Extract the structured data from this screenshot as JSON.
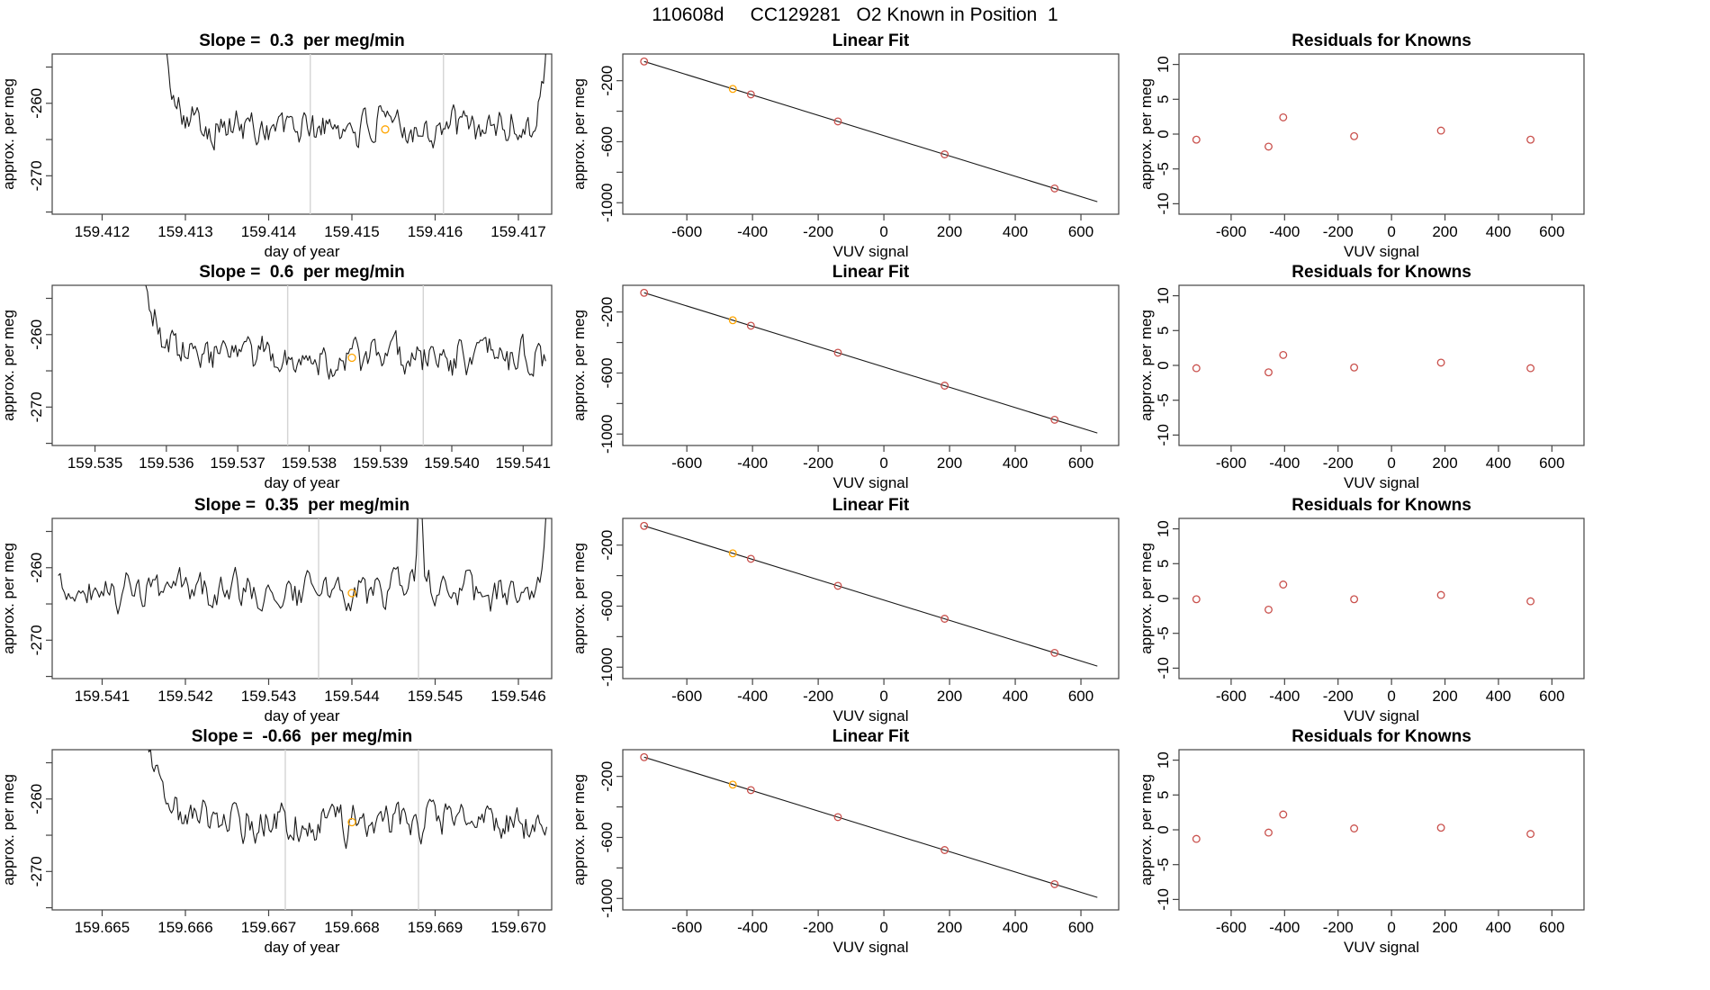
{
  "header": {
    "title": "110608d     CC129281   O2 Known in Position  1"
  },
  "colors": {
    "known_point": "#C9504C",
    "highlight_point": "#FFA500",
    "series_line": "#1a1a1a",
    "fit_line": "#1a1a1a",
    "reference_line": "#D4D4D4",
    "axis": "#444444",
    "background": "#FFFFFF"
  },
  "chart_data": {
    "type": "multi-panel",
    "grid": "4 rows x 3 columns",
    "rows": [
      {
        "timeseries": {
          "type": "line",
          "title": "Slope =  0.3  per meg/min",
          "xlabel": "day of year",
          "ylabel": "approx. per meg",
          "xlim": [
            159.4114,
            159.4174
          ],
          "xticks": [
            "159.412",
            "159.413",
            "159.414",
            "159.415",
            "159.416",
            "159.417"
          ],
          "ylim": [
            -275.3,
            -253.2
          ],
          "yticks": [
            "-260",
            "-270"
          ],
          "yticks_minor": [
            -255,
            -265,
            -275
          ],
          "mean_level": -263.3,
          "noise_amplitude": 2.0,
          "vlines": [
            159.4145,
            159.4161
          ],
          "highlight_point": {
            "x": 159.4154,
            "y": -263.6
          },
          "shape": {
            "seed": 101,
            "start_frac": 0.185,
            "end_frac": 0.997,
            "entry_drop": true,
            "end_rise": true,
            "spike_frac": null
          }
        },
        "linear_fit": {
          "type": "scatter",
          "title": "Linear Fit",
          "xlabel": "VUV signal",
          "ylabel": "approx. per meg",
          "xlim": [
            -795,
            715
          ],
          "ylim": [
            -1075,
            -25
          ],
          "xticks": [
            "-600",
            "-400",
            "-200",
            "0",
            "200",
            "400",
            "600"
          ],
          "yticks": [
            "-200",
            "-600",
            "-1000"
          ],
          "yticks_minor": [
            -400,
            -800
          ],
          "points_x": [
            -730,
            -460,
            -405,
            -140,
            185,
            520
          ],
          "points_y": [
            -74,
            -254,
            -290,
            -467,
            -683,
            -906
          ],
          "highlight_index": 1,
          "fit_line": {
            "x1": -730,
            "y1": -74,
            "x2": 650,
            "y2": -993
          }
        },
        "residuals": {
          "type": "scatter",
          "title": "Residuals for Knowns",
          "xlabel": "VUV signal",
          "ylabel": "approx. per meg",
          "xlim": [
            -795,
            720
          ],
          "ylim": [
            -11.5,
            11.5
          ],
          "xticks": [
            "-600",
            "-400",
            "-200",
            "0",
            "200",
            "400",
            "600"
          ],
          "yticks": [
            "-10",
            "-5",
            "0",
            "5",
            "10"
          ],
          "points_x": [
            -730,
            -460,
            -405,
            -140,
            185,
            520
          ],
          "points_y": [
            -0.8,
            -1.8,
            2.4,
            -0.3,
            0.5,
            -0.8
          ]
        }
      },
      {
        "timeseries": {
          "type": "line",
          "title": "Slope =  0.6  per meg/min",
          "xlabel": "day of year",
          "ylabel": "approx. per meg",
          "xlim": [
            159.5344,
            159.5414
          ],
          "xticks": [
            "159.535",
            "159.536",
            "159.537",
            "159.538",
            "159.539",
            "159.540",
            "159.541"
          ],
          "ylim": [
            -275.3,
            -253.2
          ],
          "yticks": [
            "-260",
            "-270"
          ],
          "yticks_minor": [
            -255,
            -265,
            -275
          ],
          "mean_level": -263.2,
          "noise_amplitude": 2.0,
          "vlines": [
            159.5377,
            159.5396
          ],
          "highlight_point": {
            "x": 159.5386,
            "y": -263.2
          },
          "shape": {
            "seed": 202,
            "start_frac": 0.145,
            "end_frac": 0.988,
            "entry_drop": true,
            "end_rise": false,
            "spike_frac": null
          }
        },
        "linear_fit": {
          "type": "scatter",
          "title": "Linear Fit",
          "xlabel": "VUV signal",
          "ylabel": "approx. per meg",
          "xlim": [
            -795,
            715
          ],
          "ylim": [
            -1075,
            -25
          ],
          "xticks": [
            "-600",
            "-400",
            "-200",
            "0",
            "200",
            "400",
            "600"
          ],
          "yticks": [
            "-200",
            "-600",
            "-1000"
          ],
          "yticks_minor": [
            -400,
            -800
          ],
          "points_x": [
            -730,
            -460,
            -405,
            -140,
            185,
            520
          ],
          "points_y": [
            -74,
            -254,
            -290,
            -467,
            -683,
            -906
          ],
          "highlight_index": 1,
          "fit_line": {
            "x1": -730,
            "y1": -74,
            "x2": 650,
            "y2": -993
          }
        },
        "residuals": {
          "type": "scatter",
          "title": "Residuals for Knowns",
          "xlabel": "VUV signal",
          "ylabel": "approx. per meg",
          "xlim": [
            -795,
            720
          ],
          "ylim": [
            -11.5,
            11.5
          ],
          "xticks": [
            "-600",
            "-400",
            "-200",
            "0",
            "200",
            "400",
            "600"
          ],
          "yticks": [
            "-10",
            "-5",
            "0",
            "5",
            "10"
          ],
          "points_x": [
            -730,
            -460,
            -405,
            -140,
            185,
            520
          ],
          "points_y": [
            -0.4,
            -1.0,
            1.5,
            -0.3,
            0.4,
            -0.4
          ]
        }
      },
      {
        "timeseries": {
          "type": "line",
          "title": "Slope =  0.35  per meg/min",
          "xlabel": "day of year",
          "ylabel": "approx. per meg",
          "xlim": [
            159.5404,
            159.5464
          ],
          "xticks": [
            "159.541",
            "159.542",
            "159.543",
            "159.544",
            "159.545",
            "159.546"
          ],
          "ylim": [
            -275.3,
            -253.2
          ],
          "yticks": [
            "-260",
            "-270"
          ],
          "yticks_minor": [
            -255,
            -265,
            -275
          ],
          "mean_level": -263.4,
          "noise_amplitude": 2.0,
          "vlines": [
            159.5436,
            159.5448
          ],
          "highlight_point": {
            "x": 159.544,
            "y": -263.5
          },
          "shape": {
            "seed": 303,
            "start_frac": 0.012,
            "end_frac": 0.997,
            "entry_drop": false,
            "end_rise": true,
            "spike_frac": 0.737
          }
        },
        "linear_fit": {
          "type": "scatter",
          "title": "Linear Fit",
          "xlabel": "VUV signal",
          "ylabel": "approx. per meg",
          "xlim": [
            -795,
            715
          ],
          "ylim": [
            -1075,
            -25
          ],
          "xticks": [
            "-600",
            "-400",
            "-200",
            "0",
            "200",
            "400",
            "600"
          ],
          "yticks": [
            "-200",
            "-600",
            "-1000"
          ],
          "yticks_minor": [
            -400,
            -800
          ],
          "points_x": [
            -730,
            -460,
            -405,
            -140,
            185,
            520
          ],
          "points_y": [
            -74,
            -254,
            -290,
            -467,
            -683,
            -906
          ],
          "highlight_index": 1,
          "fit_line": {
            "x1": -730,
            "y1": -74,
            "x2": 650,
            "y2": -993
          }
        },
        "residuals": {
          "type": "scatter",
          "title": "Residuals for Knowns",
          "xlabel": "VUV signal",
          "ylabel": "approx. per meg",
          "xlim": [
            -795,
            720
          ],
          "ylim": [
            -11.5,
            11.5
          ],
          "xticks": [
            "-600",
            "-400",
            "-200",
            "0",
            "200",
            "400",
            "600"
          ],
          "yticks": [
            "-10",
            "-5",
            "0",
            "5",
            "10"
          ],
          "points_x": [
            -730,
            -460,
            -405,
            -140,
            185,
            520
          ],
          "points_y": [
            -0.1,
            -1.6,
            2.0,
            -0.1,
            0.5,
            -0.4
          ]
        }
      },
      {
        "timeseries": {
          "type": "line",
          "title": "Slope =  -0.66  per meg/min",
          "xlabel": "day of year",
          "ylabel": "approx. per meg",
          "xlim": [
            159.6644,
            159.6704
          ],
          "xticks": [
            "159.665",
            "159.666",
            "159.667",
            "159.668",
            "159.669",
            "159.670"
          ],
          "ylim": [
            -275.3,
            -253.2
          ],
          "yticks": [
            "-260",
            "-270"
          ],
          "yticks_minor": [
            -255,
            -265,
            -275
          ],
          "mean_level": -263.3,
          "noise_amplitude": 2.0,
          "vlines": [
            159.6672,
            159.6688
          ],
          "highlight_point": {
            "x": 159.668,
            "y": -263.2
          },
          "shape": {
            "seed": 404,
            "start_frac": 0.155,
            "end_frac": 0.99,
            "entry_drop": true,
            "end_rise": false,
            "spike_frac": null
          }
        },
        "linear_fit": {
          "type": "scatter",
          "title": "Linear Fit",
          "xlabel": "VUV signal",
          "ylabel": "approx. per meg",
          "xlim": [
            -795,
            715
          ],
          "ylim": [
            -1075,
            -25
          ],
          "xticks": [
            "-600",
            "-400",
            "-200",
            "0",
            "200",
            "400",
            "600"
          ],
          "yticks": [
            "-200",
            "-600",
            "-1000"
          ],
          "yticks_minor": [
            -400,
            -800
          ],
          "points_x": [
            -730,
            -460,
            -405,
            -140,
            185,
            520
          ],
          "points_y": [
            -74,
            -254,
            -290,
            -467,
            -683,
            -906
          ],
          "highlight_index": 1,
          "fit_line": {
            "x1": -730,
            "y1": -74,
            "x2": 650,
            "y2": -993
          }
        },
        "residuals": {
          "type": "scatter",
          "title": "Residuals for Knowns",
          "xlabel": "VUV signal",
          "ylabel": "approx. per meg",
          "xlim": [
            -795,
            720
          ],
          "ylim": [
            -11.5,
            11.5
          ],
          "xticks": [
            "-600",
            "-400",
            "-200",
            "0",
            "200",
            "400",
            "600"
          ],
          "yticks": [
            "-10",
            "-5",
            "0",
            "5",
            "10"
          ],
          "points_x": [
            -730,
            -460,
            -405,
            -140,
            185,
            520
          ],
          "points_y": [
            -1.3,
            -0.4,
            2.2,
            0.2,
            0.3,
            -0.6
          ]
        }
      }
    ]
  }
}
